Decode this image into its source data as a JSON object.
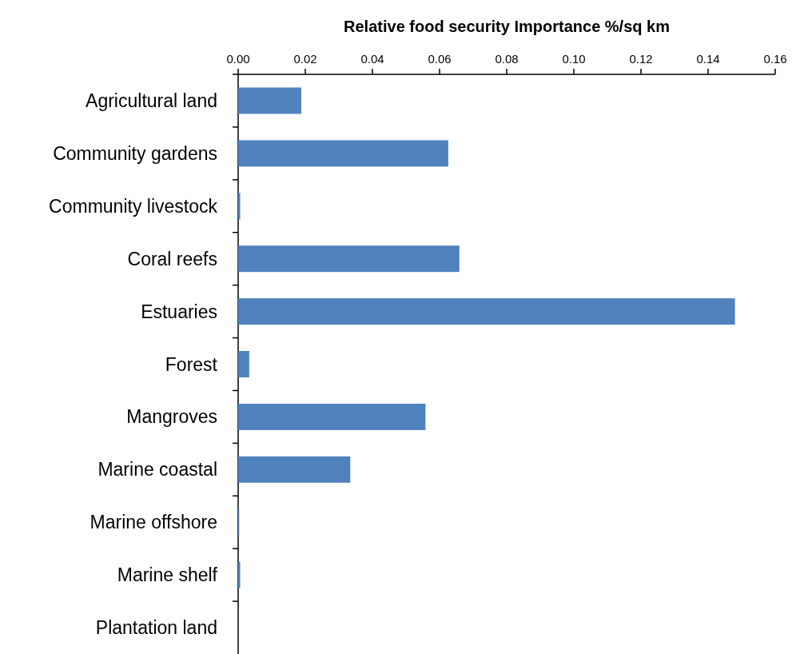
{
  "chart_data": {
    "type": "bar",
    "orientation": "horizontal",
    "xlabel": "Relative food security Importance %/sq km",
    "categories": [
      "Agricultural land",
      "Community gardens",
      "Community livestock",
      "Coral reefs",
      "Estuaries",
      "Forest",
      "Mangroves",
      "Marine coastal",
      "Marine offshore",
      "Marine shelf",
      "Plantation land"
    ],
    "values": [
      0.0188,
      0.0626,
      0.0006,
      0.0659,
      0.148,
      0.0033,
      0.0558,
      0.0334,
      0.0003,
      0.0006,
      0
    ],
    "color": "#4f81bd",
    "xlim": [
      0,
      0.16
    ],
    "xticks": [
      {
        "value": 0,
        "label": "0.00"
      },
      {
        "value": 0.02,
        "label": "0.02"
      },
      {
        "value": 0.04,
        "label": "0.04"
      },
      {
        "value": 0.06,
        "label": "0.06"
      },
      {
        "value": 0.08,
        "label": "0.08"
      },
      {
        "value": 0.1,
        "label": "0.10"
      },
      {
        "value": 0.12,
        "label": "0.12"
      },
      {
        "value": 0.14,
        "label": "0.14"
      },
      {
        "value": 0.16,
        "label": "0.16"
      }
    ],
    "grid": false
  }
}
